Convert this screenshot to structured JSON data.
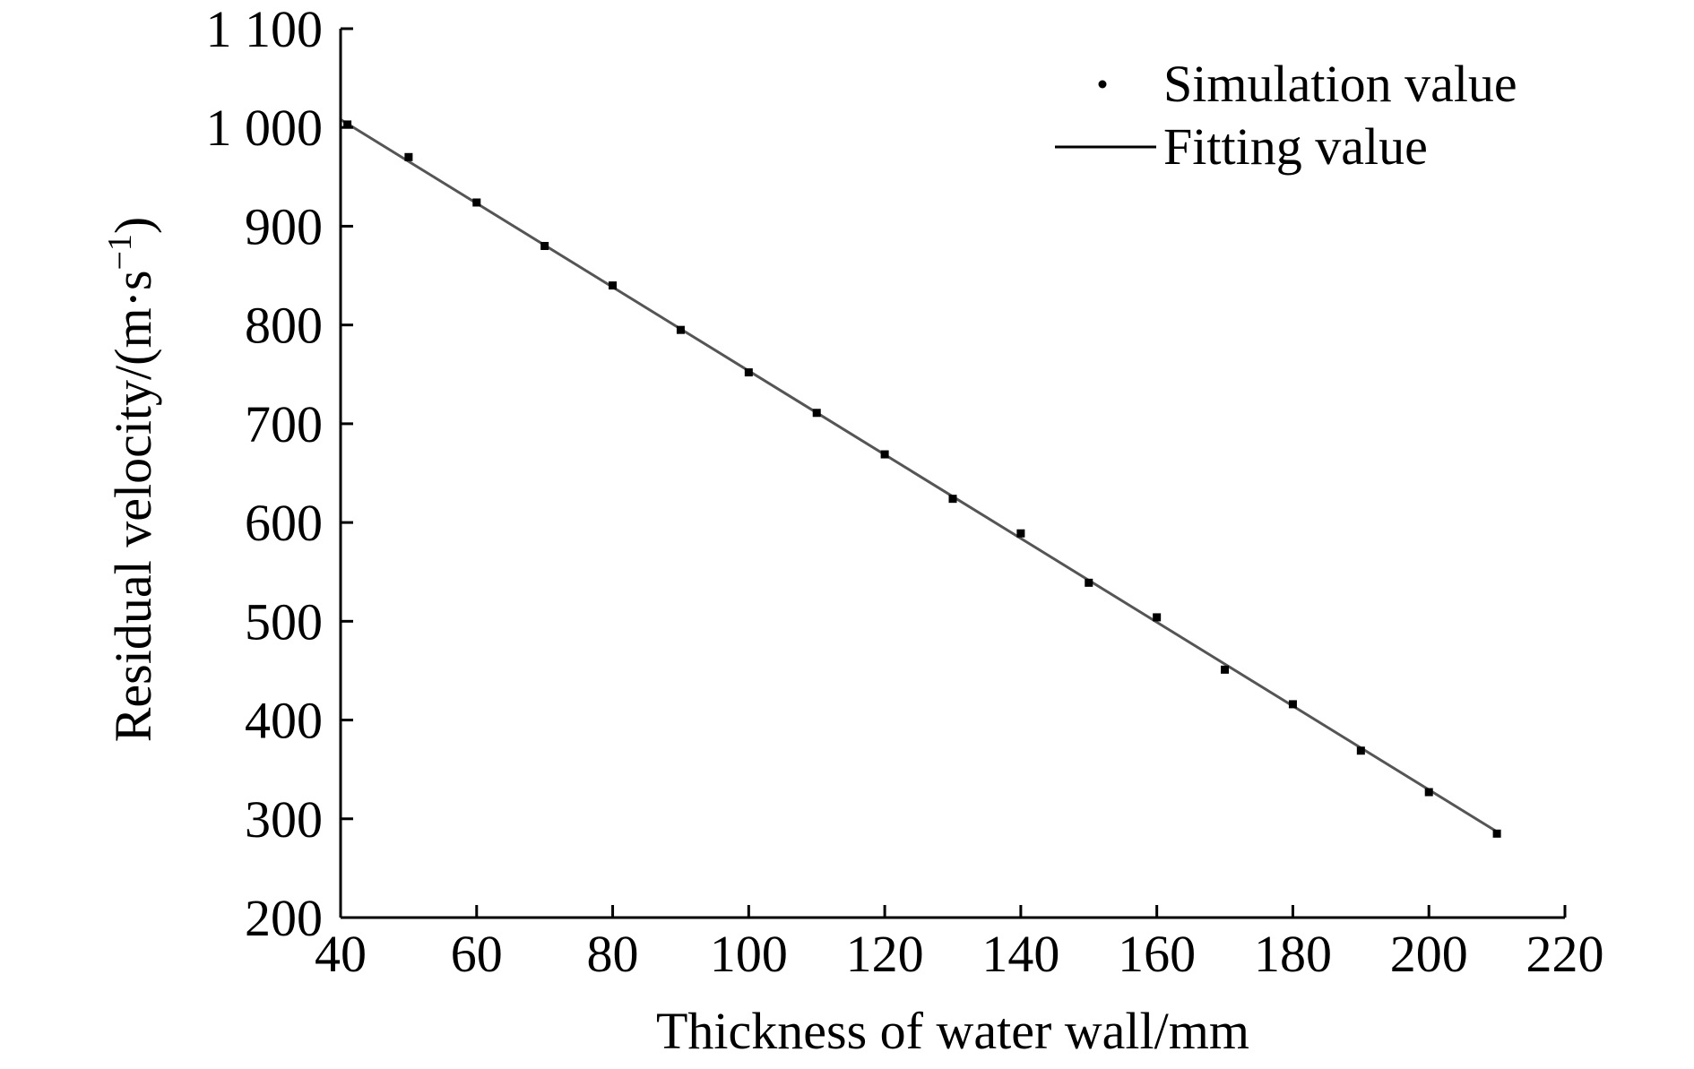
{
  "chart_data": {
    "type": "scatter",
    "xlabel": "Thickness of water wall/mm",
    "ylabel_main": "Residual velocity/(m·s",
    "ylabel_sup": "−1",
    "ylabel_close": ")",
    "xlim": [
      40,
      220
    ],
    "ylim": [
      200,
      1100
    ],
    "xticks": [
      40,
      60,
      80,
      100,
      120,
      140,
      160,
      180,
      200,
      220
    ],
    "yticks": [
      200,
      300,
      400,
      500,
      600,
      700,
      800,
      900,
      1000,
      1100
    ],
    "xtick_labels": [
      "40",
      "60",
      "80",
      "100",
      "120",
      "140",
      "160",
      "180",
      "200",
      "220"
    ],
    "ytick_labels": [
      "200",
      "300",
      "400",
      "500",
      "600",
      "700",
      "800",
      "900",
      "1 000",
      "1 100"
    ],
    "legend_position": "top-right",
    "grid": false,
    "series": [
      {
        "name": "Simulation value",
        "kind": "points",
        "color": "#000000",
        "x": [
          41,
          50,
          60,
          70,
          80,
          90,
          100,
          110,
          120,
          130,
          140,
          150,
          160,
          170,
          180,
          190,
          200,
          210
        ],
        "y": [
          1003,
          970,
          924,
          880,
          840,
          795,
          752,
          711,
          669,
          624,
          589,
          539,
          504,
          451,
          416,
          369,
          327,
          285
        ]
      },
      {
        "name": "Fitting value",
        "kind": "line",
        "color": "#555555",
        "x": [
          40,
          210
        ],
        "y": [
          1008,
          287
        ]
      }
    ]
  }
}
